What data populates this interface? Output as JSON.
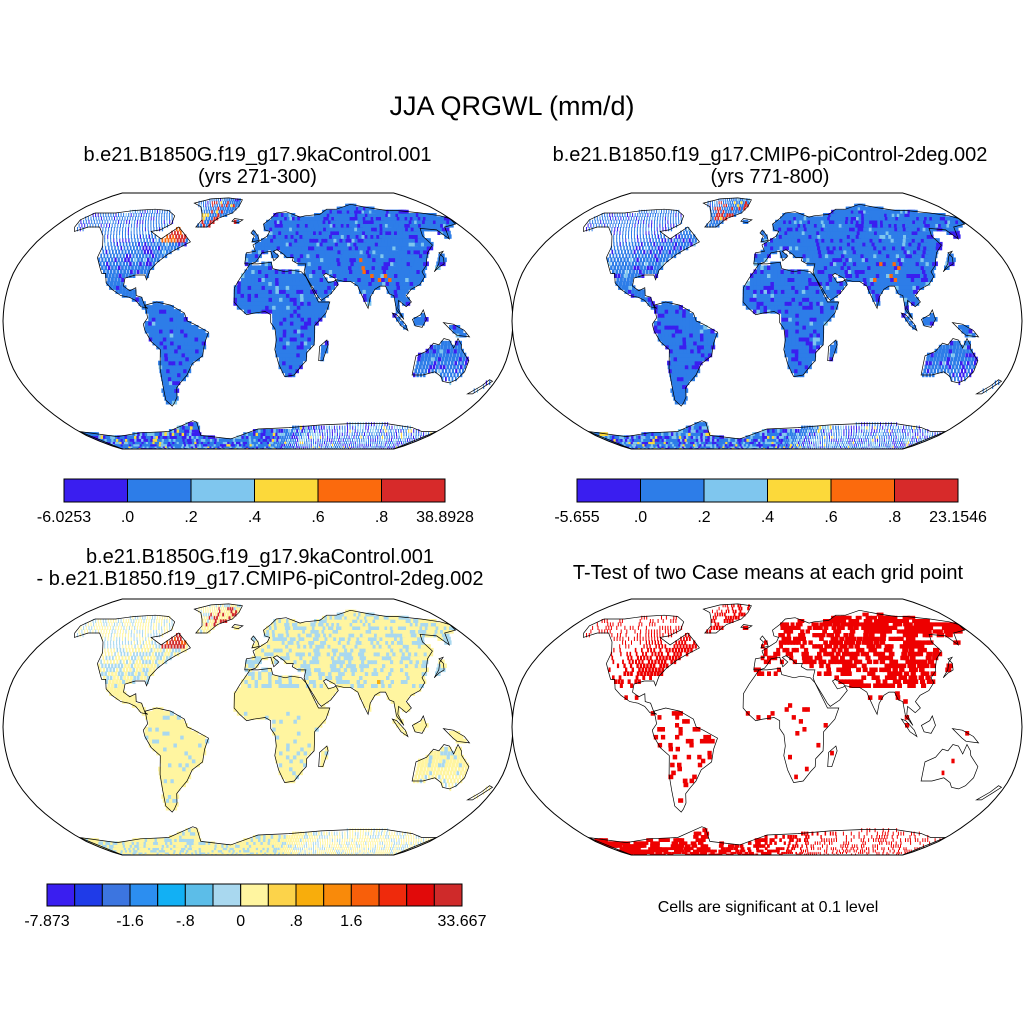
{
  "figure": {
    "title": "JJA QRGWL (mm/d)"
  },
  "panels": [
    {
      "id": "case1",
      "title_lines": [
        "b.e21.B1850G.f19_g17.9kaControl.001",
        "(yrs 271-300)"
      ],
      "colorbar": {
        "colors": [
          "#3a1ef0",
          "#2d7de8",
          "#7fc6ee",
          "#fcd93a",
          "#fb6a0d",
          "#d72a2a"
        ],
        "labels": [
          "-6.0253",
          ".0",
          ".2",
          ".4",
          ".6",
          ".8",
          "38.8928"
        ]
      }
    },
    {
      "id": "case2",
      "title_lines": [
        "b.e21.B1850.f19_g17.CMIP6-piControl-2deg.002",
        "(yrs 771-800)"
      ],
      "colorbar": {
        "colors": [
          "#3a1ef0",
          "#2d7de8",
          "#7fc6ee",
          "#fcd93a",
          "#fb6a0d",
          "#d72a2a"
        ],
        "labels": [
          "-5.655",
          ".0",
          ".2",
          ".4",
          ".6",
          ".8",
          "23.1546"
        ]
      }
    },
    {
      "id": "difference",
      "title_lines": [
        "b.e21.B1850G.f19_g17.9kaControl.001",
        "- b.e21.B1850.f19_g17.CMIP6-piControl-2deg.002"
      ],
      "colorbar": {
        "colors": [
          "#3a1ef0",
          "#1f3be8",
          "#3c75e0",
          "#2c8ef0",
          "#12b0f4",
          "#5cbde8",
          "#a9d8ef",
          "#fff5a0",
          "#fcd34a",
          "#f8ad0c",
          "#f98a0a",
          "#f85f0a",
          "#ef2a0c",
          "#e10a0a",
          "#cf2a2a"
        ],
        "labels": [
          "-7.873",
          "-1.6",
          "-.8",
          "0",
          ".8",
          "1.6",
          "33.667"
        ]
      }
    },
    {
      "id": "ttest",
      "title_lines": [
        "T-Test of two Case means at each grid point"
      ],
      "note": "Cells are significant at 0.1 level"
    }
  ],
  "style": {
    "land_fill_case": "#2d7de8",
    "land_fill_diff": "#fff5a0",
    "ocean_fill": "#ffffff",
    "significant_color": "#ee0000"
  }
}
